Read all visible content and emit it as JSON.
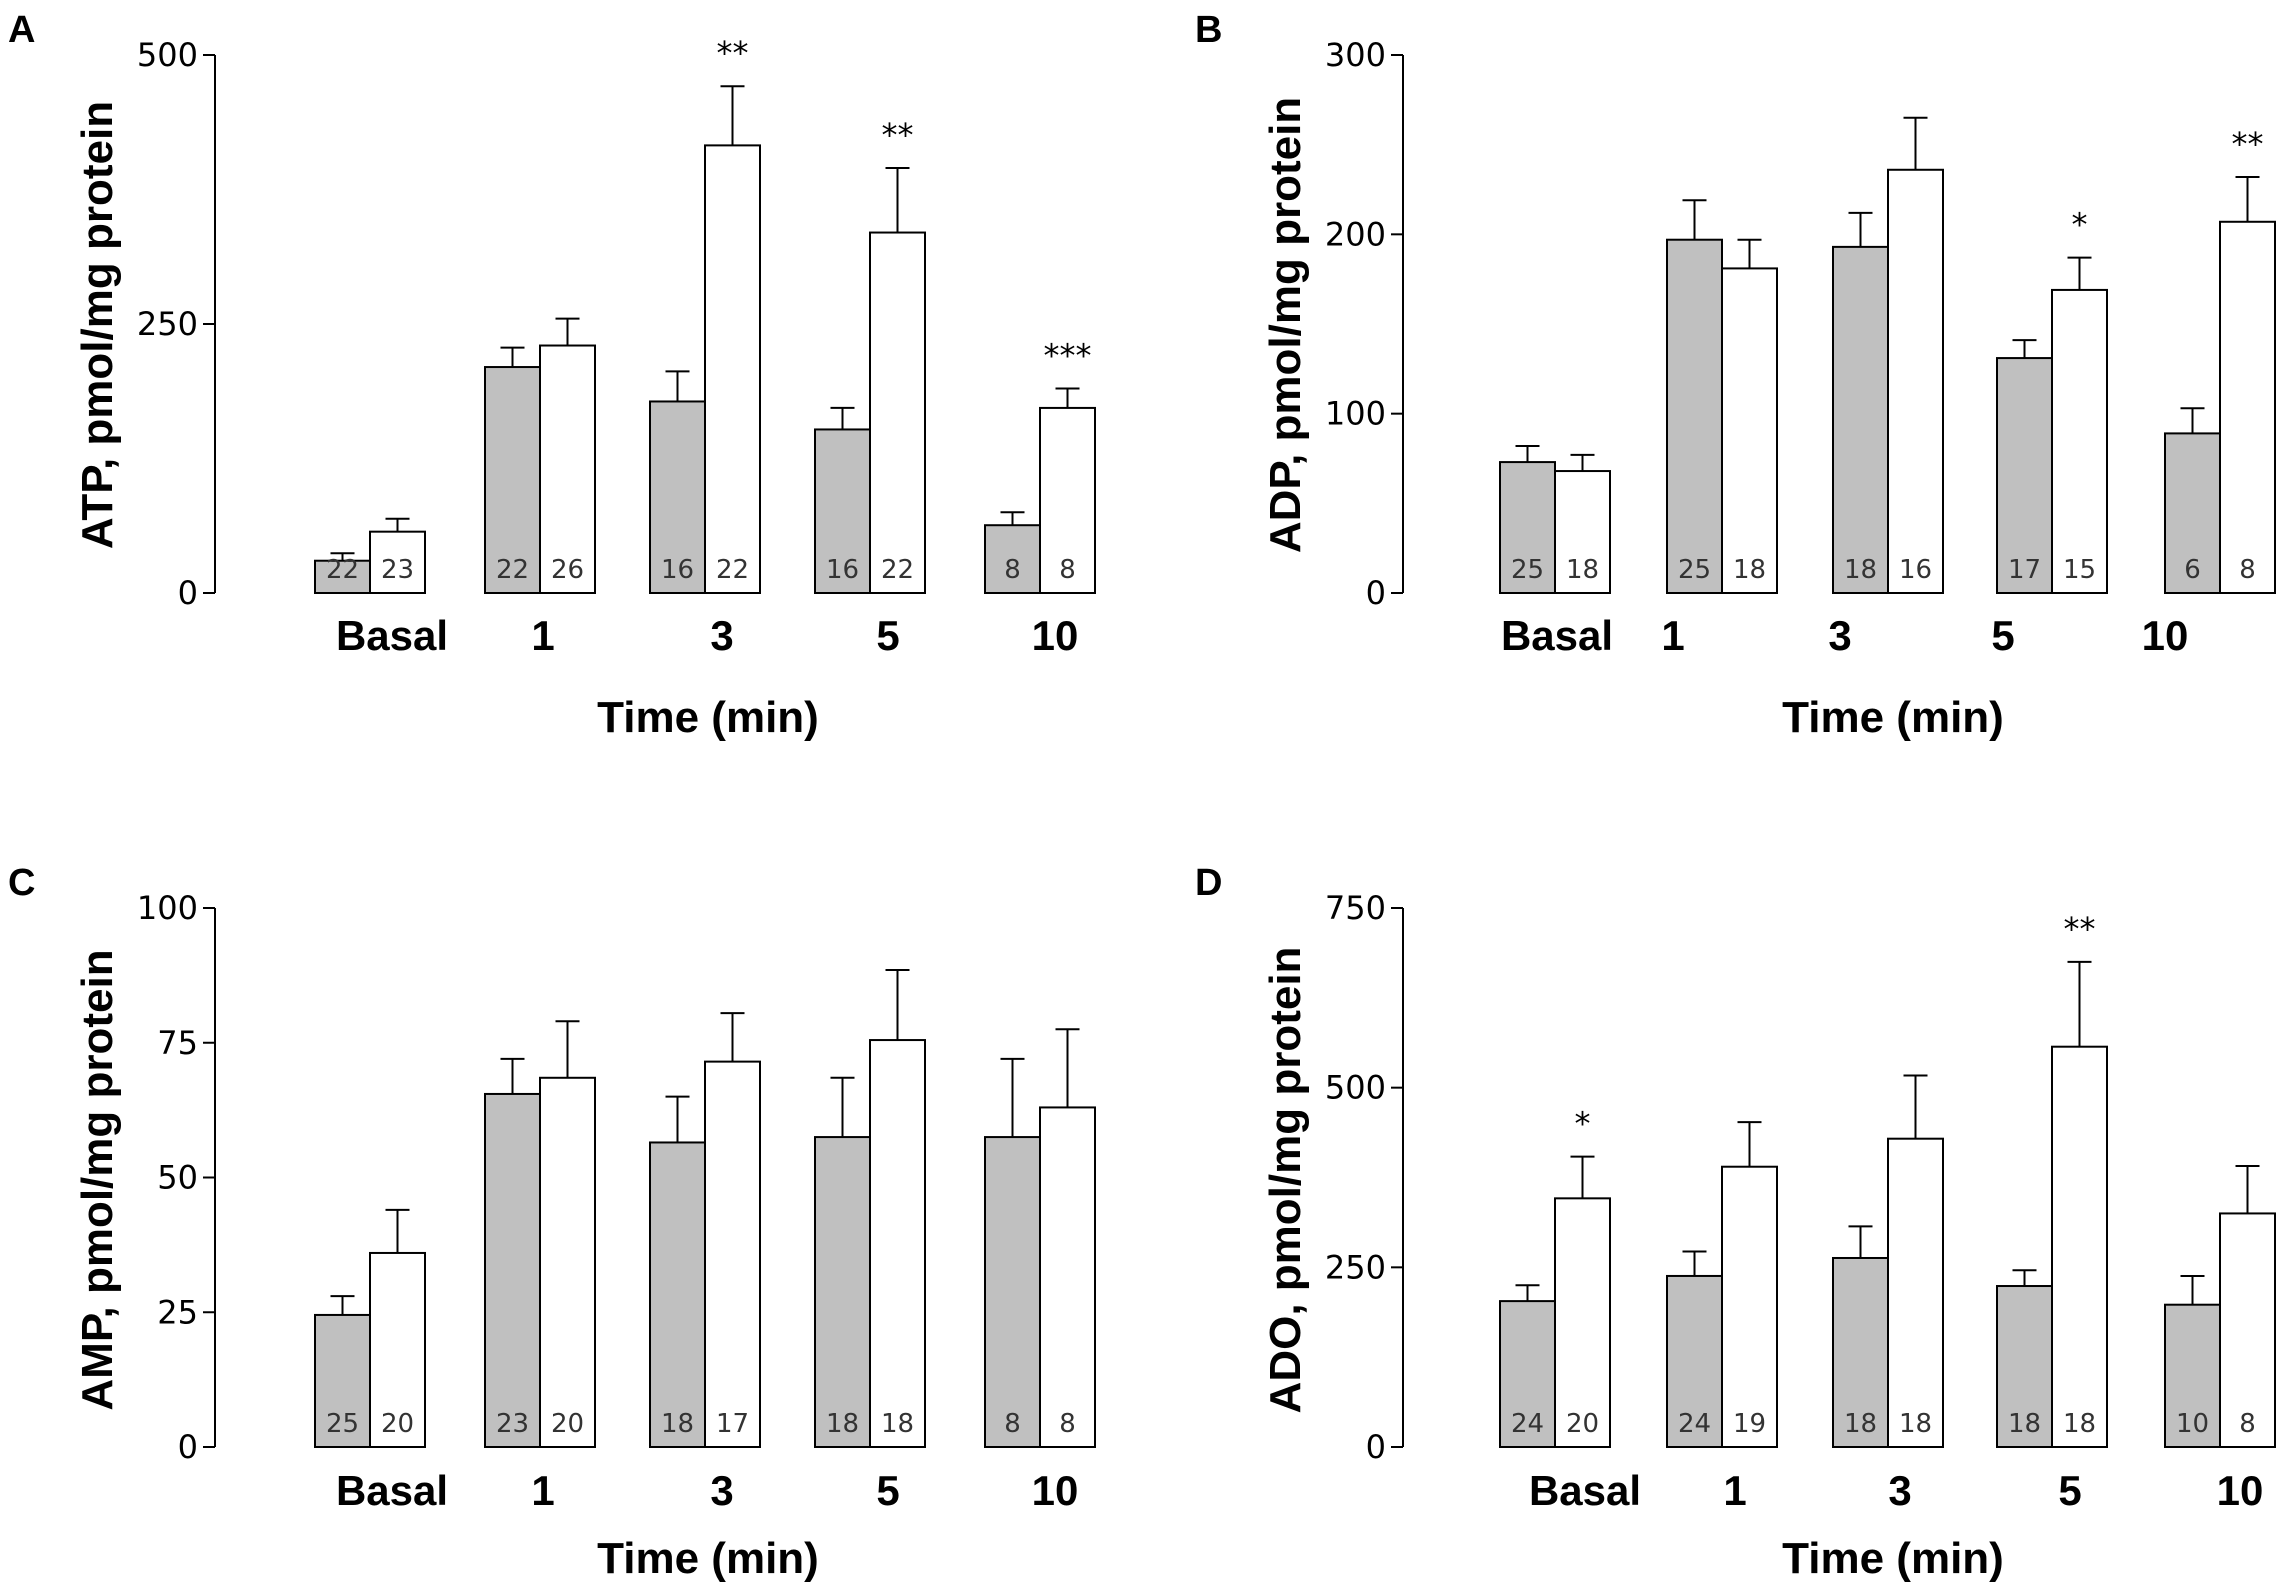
{
  "figure": {
    "panels": [
      {
        "letter": "A",
        "ylabel": "ATP, pmol/mg protein",
        "xlabel": "Time (min)",
        "ylim": [
          0,
          500
        ],
        "yticks": [
          0,
          250,
          500
        ],
        "categories": [
          "Basal",
          "1",
          "3",
          "5",
          "10"
        ],
        "gray": {
          "values": [
            30,
            210,
            178,
            152,
            63
          ],
          "errors": [
            7,
            18,
            28,
            20,
            12
          ],
          "n": [
            "22",
            "22",
            "16",
            "16",
            "8"
          ]
        },
        "white": {
          "values": [
            57,
            230,
            416,
            335,
            172
          ],
          "errors": [
            12,
            25,
            55,
            60,
            18
          ],
          "n": [
            "23",
            "26",
            "22",
            "22",
            "8"
          ]
        },
        "significance": [
          "",
          "",
          "**",
          "**",
          "***"
        ]
      },
      {
        "letter": "B",
        "ylabel": "ADP, pmol/mg protein",
        "xlabel": "Time (min)",
        "ylim": [
          0,
          300
        ],
        "yticks": [
          0,
          100,
          200,
          300
        ],
        "categories": [
          "Basal",
          "1",
          "3",
          "5",
          "10"
        ],
        "gray": {
          "values": [
            73,
            197,
            193,
            131,
            89
          ],
          "errors": [
            9,
            22,
            19,
            10,
            14
          ],
          "n": [
            "25",
            "25",
            "18",
            "17",
            "6"
          ]
        },
        "white": {
          "values": [
            68,
            181,
            236,
            169,
            207
          ],
          "errors": [
            9,
            16,
            29,
            18,
            25
          ],
          "n": [
            "18",
            "18",
            "16",
            "15",
            "8"
          ]
        },
        "significance": [
          "",
          "",
          "",
          "*",
          "**"
        ]
      },
      {
        "letter": "C",
        "ylabel": "AMP, pmol/mg protein",
        "xlabel": "Time (min)",
        "ylim": [
          0,
          100
        ],
        "yticks": [
          0,
          25,
          50,
          75,
          100
        ],
        "categories": [
          "Basal",
          "1",
          "3",
          "5",
          "10"
        ],
        "gray": {
          "values": [
            24.5,
            65.5,
            56.5,
            57.5,
            57.5
          ],
          "errors": [
            3.5,
            6.5,
            8.5,
            11,
            14.5
          ],
          "n": [
            "25",
            "23",
            "18",
            "18",
            "8"
          ]
        },
        "white": {
          "values": [
            36,
            68.5,
            71.5,
            75.5,
            63
          ],
          "errors": [
            8,
            10.5,
            9,
            13,
            14.5
          ],
          "n": [
            "20",
            "20",
            "17",
            "18",
            "8"
          ]
        },
        "significance": [
          "",
          "",
          "",
          "",
          ""
        ]
      },
      {
        "letter": "D",
        "ylabel": "ADO, pmol/mg protein",
        "xlabel": "Time (min)",
        "ylim": [
          0,
          750
        ],
        "yticks": [
          0,
          250,
          500,
          750
        ],
        "categories": [
          "Basal",
          "1",
          "3",
          "5",
          "10"
        ],
        "gray": {
          "values": [
            203,
            238,
            263,
            224,
            198
          ],
          "errors": [
            22,
            34,
            44,
            22,
            40
          ],
          "n": [
            "24",
            "24",
            "18",
            "18",
            "10"
          ]
        },
        "white": {
          "values": [
            346,
            390,
            429,
            557,
            325
          ],
          "errors": [
            58,
            62,
            88,
            118,
            66
          ],
          "n": [
            "20",
            "19",
            "18",
            "18",
            "8"
          ]
        },
        "significance": [
          "*",
          "",
          "",
          "**",
          ""
        ]
      }
    ]
  },
  "chart_data": [
    {
      "type": "bar",
      "title": "A",
      "ylabel": "ATP, pmol/mg protein",
      "xlabel": "Time (min)",
      "ylim": [
        0,
        500
      ],
      "categories": [
        "Basal",
        "1",
        "3",
        "5",
        "10"
      ],
      "series": [
        {
          "name": "gray",
          "values": [
            30,
            210,
            178,
            152,
            63
          ],
          "errors": [
            7,
            18,
            28,
            20,
            12
          ]
        },
        {
          "name": "white",
          "values": [
            57,
            230,
            416,
            335,
            172
          ],
          "errors": [
            12,
            25,
            55,
            60,
            18
          ]
        }
      ]
    },
    {
      "type": "bar",
      "title": "B",
      "ylabel": "ADP, pmol/mg protein",
      "xlabel": "Time (min)",
      "ylim": [
        0,
        300
      ],
      "categories": [
        "Basal",
        "1",
        "3",
        "5",
        "10"
      ],
      "series": [
        {
          "name": "gray",
          "values": [
            73,
            197,
            193,
            131,
            89
          ],
          "errors": [
            9,
            22,
            19,
            10,
            14
          ]
        },
        {
          "name": "white",
          "values": [
            68,
            181,
            236,
            169,
            207
          ],
          "errors": [
            9,
            16,
            29,
            18,
            25
          ]
        }
      ]
    },
    {
      "type": "bar",
      "title": "C",
      "ylabel": "AMP, pmol/mg protein",
      "xlabel": "Time (min)",
      "ylim": [
        0,
        100
      ],
      "categories": [
        "Basal",
        "1",
        "3",
        "5",
        "10"
      ],
      "series": [
        {
          "name": "gray",
          "values": [
            24.5,
            65.5,
            56.5,
            57.5,
            57.5
          ],
          "errors": [
            3.5,
            6.5,
            8.5,
            11,
            14.5
          ]
        },
        {
          "name": "white",
          "values": [
            36,
            68.5,
            71.5,
            75.5,
            63
          ],
          "errors": [
            8,
            10.5,
            9,
            13,
            14.5
          ]
        }
      ]
    },
    {
      "type": "bar",
      "title": "D",
      "ylabel": "ADO, pmol/mg protein",
      "xlabel": "Time (min)",
      "ylim": [
        0,
        750
      ],
      "categories": [
        "Basal",
        "1",
        "3",
        "5",
        "10"
      ],
      "series": [
        {
          "name": "gray",
          "values": [
            203,
            238,
            263,
            224,
            198
          ],
          "errors": [
            22,
            34,
            44,
            22,
            40
          ]
        },
        {
          "name": "white",
          "values": [
            346,
            390,
            429,
            557,
            325
          ],
          "errors": [
            58,
            62,
            88,
            118,
            66
          ]
        }
      ]
    }
  ],
  "colors": {
    "gray_bar": "#c0c0c0",
    "white_bar": "#ffffff",
    "stroke": "#000000"
  }
}
